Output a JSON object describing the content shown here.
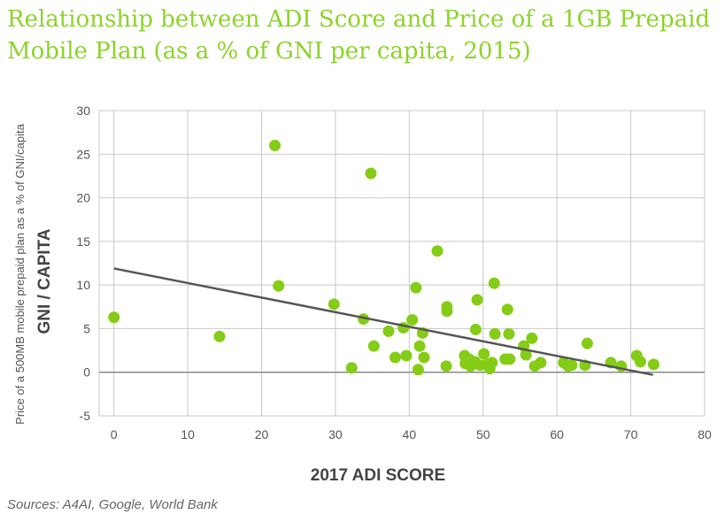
{
  "title_lines": [
    "Relationship between ADI Score and Price of a 1GB Prepaid",
    "Mobile Plan (as a % of GNI per capita, 2015)"
  ],
  "source": "Sources: A4AI, Google, World Bank",
  "chart_data": {
    "type": "scatter",
    "title": "Relationship between ADI Score and Price of a 1GB Prepaid Mobile Plan (as a % of GNI per capita, 2015)",
    "xlabel": "2017 ADI SCORE",
    "ylabel": "GNI / CAPITA",
    "ylabel_secondary": "Price of a 500MB mobile prepaid plan as a % of GNI/capita",
    "xlim": [
      -2,
      80
    ],
    "ylim": [
      -5,
      30
    ],
    "x_ticks": [
      0,
      10,
      20,
      30,
      40,
      50,
      60,
      70,
      80
    ],
    "y_ticks": [
      -5,
      0,
      5,
      10,
      15,
      20,
      25,
      30
    ],
    "grid": true,
    "colors": {
      "points": "#84cc16",
      "trend": "#555555",
      "grid": "#c8c8c8",
      "zero_line": "#888888"
    },
    "trendline": {
      "x": [
        0,
        73
      ],
      "y": [
        11.9,
        -0.3
      ]
    },
    "points": [
      {
        "x": 0,
        "y": 6.3
      },
      {
        "x": 14.3,
        "y": 4.1
      },
      {
        "x": 21.8,
        "y": 26.0
      },
      {
        "x": 22.3,
        "y": 9.9
      },
      {
        "x": 29.8,
        "y": 7.8
      },
      {
        "x": 32.2,
        "y": 0.5
      },
      {
        "x": 33.8,
        "y": 6.1
      },
      {
        "x": 34.8,
        "y": 22.8
      },
      {
        "x": 35.2,
        "y": 3.0
      },
      {
        "x": 37.2,
        "y": 4.7
      },
      {
        "x": 38.1,
        "y": 1.7
      },
      {
        "x": 39.2,
        "y": 5.1
      },
      {
        "x": 39.6,
        "y": 1.9
      },
      {
        "x": 40.4,
        "y": 6.0
      },
      {
        "x": 40.9,
        "y": 9.7
      },
      {
        "x": 41.2,
        "y": 0.3
      },
      {
        "x": 41.4,
        "y": 3.0
      },
      {
        "x": 41.8,
        "y": 4.5
      },
      {
        "x": 42.0,
        "y": 1.7
      },
      {
        "x": 43.8,
        "y": 13.9
      },
      {
        "x": 45.0,
        "y": 0.7
      },
      {
        "x": 45.1,
        "y": 7.0
      },
      {
        "x": 45.1,
        "y": 7.5
      },
      {
        "x": 47.5,
        "y": 1.9
      },
      {
        "x": 47.6,
        "y": 1.0
      },
      {
        "x": 48.1,
        "y": 1.5
      },
      {
        "x": 48.3,
        "y": 0.7
      },
      {
        "x": 48.9,
        "y": 1.2
      },
      {
        "x": 49.0,
        "y": 4.9
      },
      {
        "x": 49.2,
        "y": 8.3
      },
      {
        "x": 49.6,
        "y": 0.8
      },
      {
        "x": 50.1,
        "y": 2.1
      },
      {
        "x": 50.6,
        "y": 0.9
      },
      {
        "x": 50.9,
        "y": 0.4
      },
      {
        "x": 51.2,
        "y": 1.1
      },
      {
        "x": 51.5,
        "y": 10.2
      },
      {
        "x": 51.6,
        "y": 4.4
      },
      {
        "x": 53.0,
        "y": 1.5
      },
      {
        "x": 53.3,
        "y": 7.2
      },
      {
        "x": 53.5,
        "y": 4.4
      },
      {
        "x": 53.6,
        "y": 1.5
      },
      {
        "x": 55.5,
        "y": 3.0
      },
      {
        "x": 55.8,
        "y": 2.0
      },
      {
        "x": 56.6,
        "y": 3.9
      },
      {
        "x": 57.0,
        "y": 0.7
      },
      {
        "x": 57.8,
        "y": 1.1
      },
      {
        "x": 60.9,
        "y": 1.1
      },
      {
        "x": 61.5,
        "y": 0.7
      },
      {
        "x": 62.0,
        "y": 0.8
      },
      {
        "x": 63.8,
        "y": 0.8
      },
      {
        "x": 64.1,
        "y": 3.3
      },
      {
        "x": 67.3,
        "y": 1.1
      },
      {
        "x": 68.7,
        "y": 0.7
      },
      {
        "x": 70.8,
        "y": 1.9
      },
      {
        "x": 71.3,
        "y": 1.2
      },
      {
        "x": 73.1,
        "y": 0.9
      }
    ]
  }
}
